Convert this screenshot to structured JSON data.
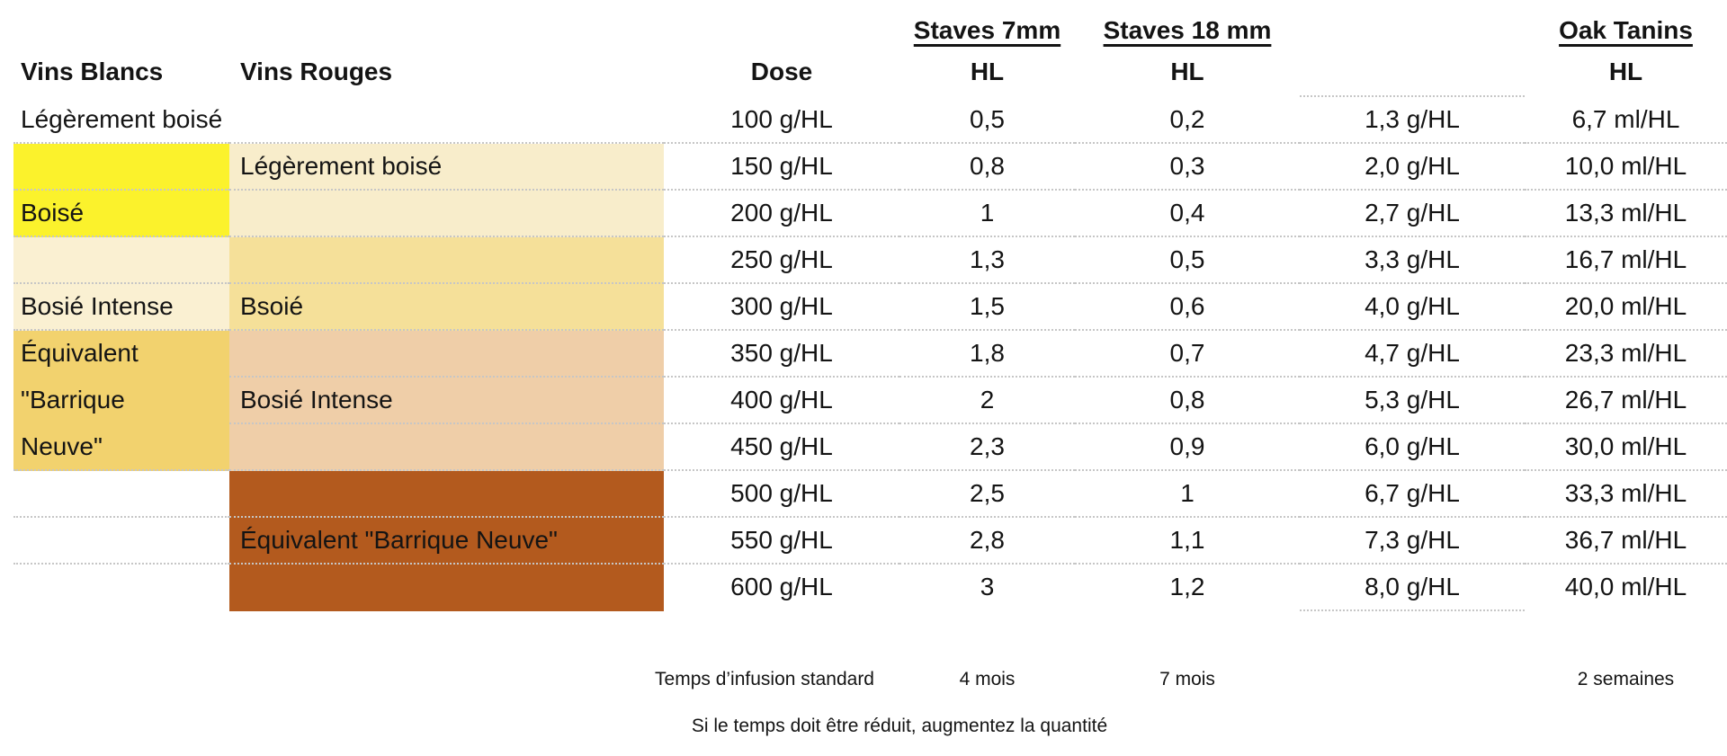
{
  "chart_data": {
    "type": "table",
    "group_headers": {
      "staves7": "Staves 7mm",
      "staves18": "Staves 18 mm",
      "oak": "Oak Tanins"
    },
    "col_headers": {
      "vins_blancs": "Vins Blancs",
      "vins_rouges": "Vins Rouges",
      "dose": "Dose",
      "hl": "HL"
    },
    "rows": [
      {
        "vins_blancs": "Légèrement boisé",
        "vins_rouges": "",
        "dose": "100 g/HL",
        "staves7_hl": "0,5",
        "staves18_hl": "0,2",
        "tanin_g": "1,3 g/HL",
        "tanin_ml": "6,7 ml/HL"
      },
      {
        "vins_blancs": "",
        "vins_rouges": "Légèrement boisé",
        "dose": "150 g/HL",
        "staves7_hl": "0,8",
        "staves18_hl": "0,3",
        "tanin_g": "2,0 g/HL",
        "tanin_ml": "10,0 ml/HL"
      },
      {
        "vins_blancs": "Boisé",
        "vins_rouges": "",
        "dose": "200 g/HL",
        "staves7_hl": "1",
        "staves18_hl": "0,4",
        "tanin_g": "2,7 g/HL",
        "tanin_ml": "13,3 ml/HL"
      },
      {
        "vins_blancs": "",
        "vins_rouges": "",
        "dose": "250 g/HL",
        "staves7_hl": "1,3",
        "staves18_hl": "0,5",
        "tanin_g": "3,3 g/HL",
        "tanin_ml": "16,7 ml/HL"
      },
      {
        "vins_blancs": "Bosié Intense",
        "vins_rouges": "Bsoié",
        "dose": "300 g/HL",
        "staves7_hl": "1,5",
        "staves18_hl": "0,6",
        "tanin_g": "4,0 g/HL",
        "tanin_ml": "20,0 ml/HL"
      },
      {
        "vins_blancs": "Équivalent",
        "vins_rouges": "",
        "dose": "350 g/HL",
        "staves7_hl": "1,8",
        "staves18_hl": "0,7",
        "tanin_g": "4,7 g/HL",
        "tanin_ml": "23,3 ml/HL"
      },
      {
        "vins_blancs": "\"Barrique",
        "vins_rouges": "Bosié Intense",
        "dose": "400 g/HL",
        "staves7_hl": "2",
        "staves18_hl": "0,8",
        "tanin_g": "5,3 g/HL",
        "tanin_ml": "26,7 ml/HL"
      },
      {
        "vins_blancs": "Neuve\"",
        "vins_rouges": "",
        "dose": "450 g/HL",
        "staves7_hl": "2,3",
        "staves18_hl": "0,9",
        "tanin_g": "6,0 g/HL",
        "tanin_ml": "30,0 ml/HL"
      },
      {
        "vins_blancs": "",
        "vins_rouges": "",
        "dose": "500 g/HL",
        "staves7_hl": "2,5",
        "staves18_hl": "1",
        "tanin_g": "6,7 g/HL",
        "tanin_ml": "33,3 ml/HL"
      },
      {
        "vins_blancs": "",
        "vins_rouges": "Équivalent \"Barrique Neuve\"",
        "dose": "550 g/HL",
        "staves7_hl": "2,8",
        "staves18_hl": "1,1",
        "tanin_g": "7,3 g/HL",
        "tanin_ml": "36,7 ml/HL"
      },
      {
        "vins_blancs": "",
        "vins_rouges": "",
        "dose": "600 g/HL",
        "staves7_hl": "3",
        "staves18_hl": "1,2",
        "tanin_g": "8,0 g/HL",
        "tanin_ml": "40,0 ml/HL"
      }
    ],
    "legend_cells": {
      "vins_blancs_merged_label": "Équivalent \"Barrique Neuve\"",
      "vins_rouges_merged_label": "Équivalent \"Barrique Neuve\""
    }
  },
  "footer": {
    "infusion_label": "Temps d’infusion standard",
    "staves7_time": "4 mois",
    "staves18_time": "7 mois",
    "oak_time": "2 semaines",
    "note": "Si le temps doit être réduit, augmentez la quantité"
  },
  "colors": {
    "yellow": "#FBF22C",
    "vins_blancs_cream": "#FAF0D2",
    "vins_blancs_gold": "#F2D26E",
    "vins_rouges_cream": "#F8EDCB",
    "vins_rouges_amber": "#F5E099",
    "vins_rouges_tan": "#EFCEA8",
    "brown": "#B35A1E",
    "separator_gray": "#C6C6C6"
  }
}
